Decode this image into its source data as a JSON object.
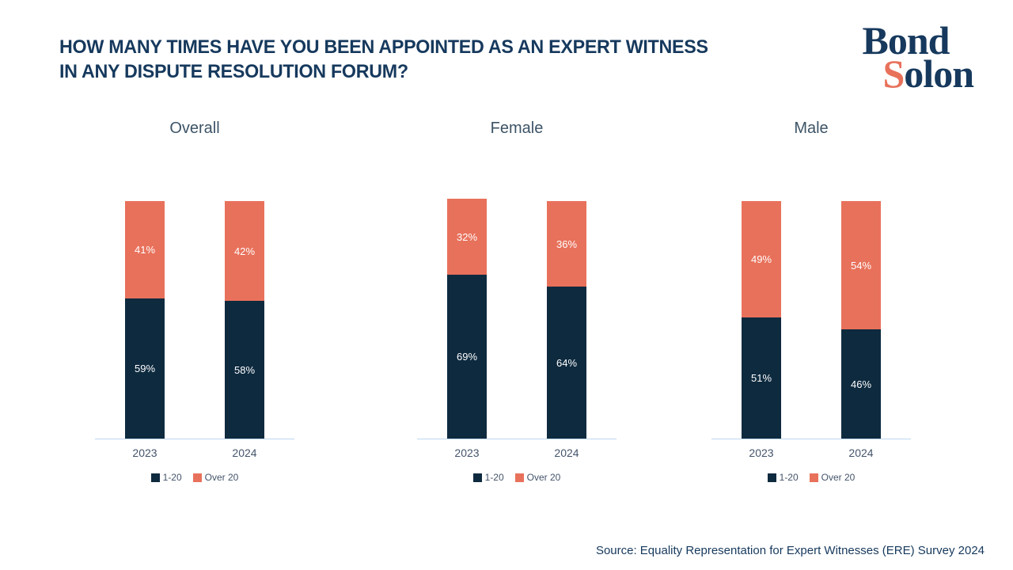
{
  "header": {
    "title_line1": "HOW MANY TIMES HAVE YOU BEEN APPOINTED AS AN EXPERT WITNESS",
    "title_line2": "IN ANY DISPUTE RESOLUTION FORUM?"
  },
  "logo": {
    "word1": "Bond",
    "word2_initial": "S",
    "word2_rest": "olon"
  },
  "colors": {
    "navy": "#0e2a3f",
    "coral": "#e8715b",
    "title_navy": "#16395d",
    "chart_title": "#3d5466",
    "axis_text": "#44546a",
    "baseline": "#bdd7ee"
  },
  "chart_data": [
    {
      "type": "bar",
      "stacked": true,
      "title": "Overall",
      "categories": [
        "2023",
        "2024"
      ],
      "series": [
        {
          "name": "1-20",
          "color": "navy",
          "values": [
            59,
            58
          ]
        },
        {
          "name": "Over 20",
          "color": "coral",
          "values": [
            41,
            42
          ]
        }
      ],
      "value_suffix": "%",
      "ylim": [
        0,
        100
      ],
      "grid": false,
      "legend_position": "bottom"
    },
    {
      "type": "bar",
      "stacked": true,
      "title": "Female",
      "categories": [
        "2023",
        "2024"
      ],
      "series": [
        {
          "name": "1-20",
          "color": "navy",
          "values": [
            69,
            64
          ]
        },
        {
          "name": "Over 20",
          "color": "coral",
          "values": [
            32,
            36
          ]
        }
      ],
      "value_suffix": "%",
      "ylim": [
        0,
        100
      ],
      "grid": false,
      "legend_position": "bottom"
    },
    {
      "type": "bar",
      "stacked": true,
      "title": "Male",
      "categories": [
        "2023",
        "2024"
      ],
      "series": [
        {
          "name": "1-20",
          "color": "navy",
          "values": [
            51,
            46
          ]
        },
        {
          "name": "Over 20",
          "color": "coral",
          "values": [
            49,
            54
          ]
        }
      ],
      "value_suffix": "%",
      "ylim": [
        0,
        100
      ],
      "grid": false,
      "legend_position": "bottom"
    }
  ],
  "source": "Source: Equality Representation for Expert Witnesses (ERE) Survey 2024"
}
